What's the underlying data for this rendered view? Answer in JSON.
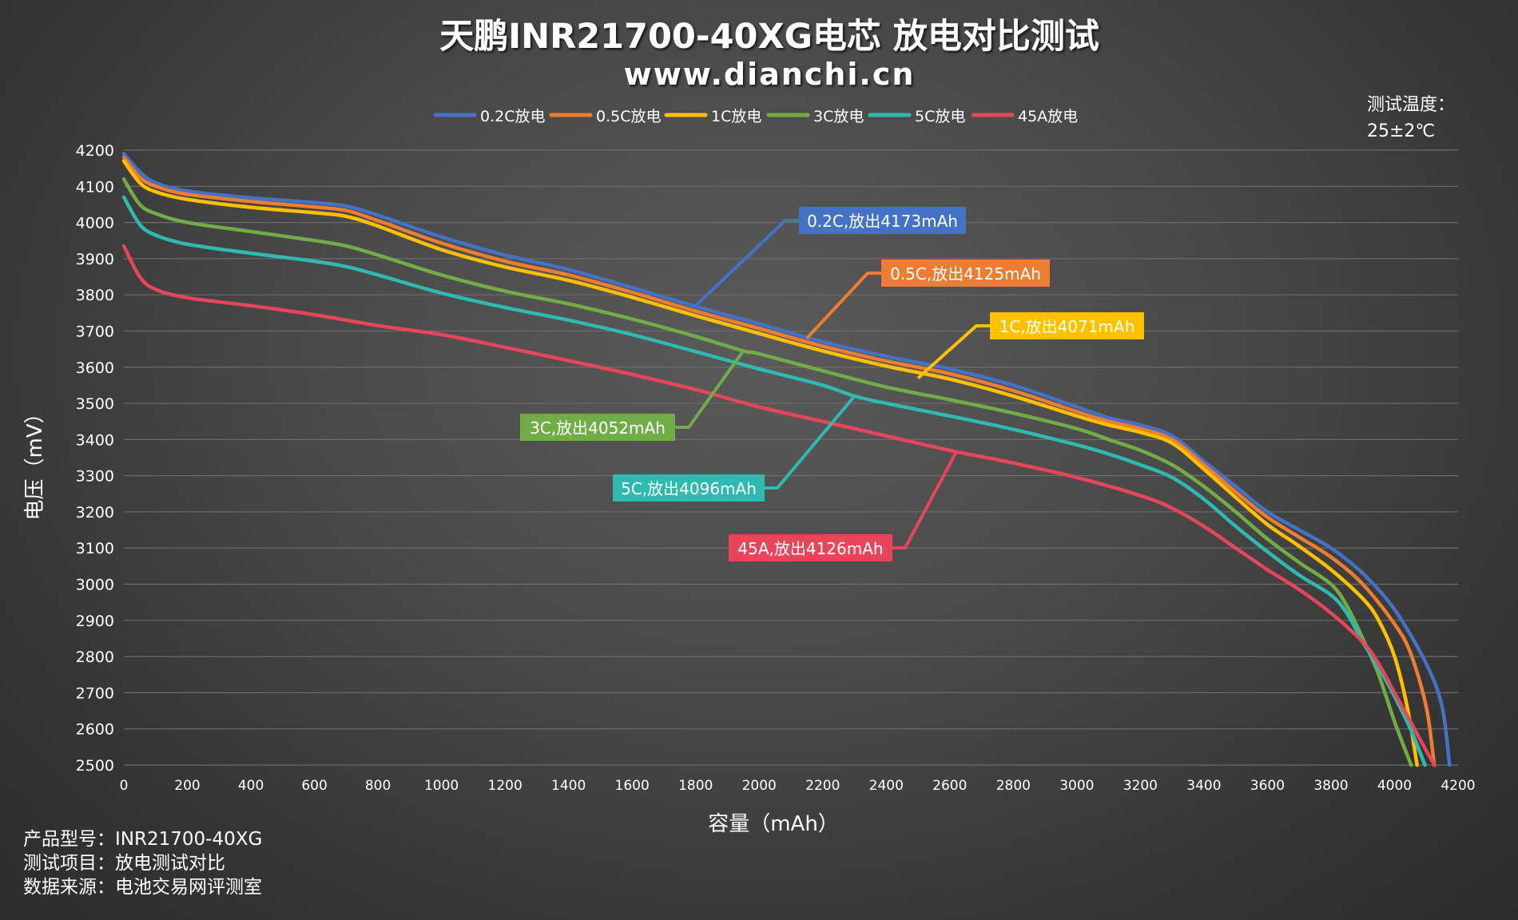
{
  "chart_data": {
    "type": "line",
    "title": "天鹏INR21700-40XG电芯 放电对比测试",
    "subtitle": "www.dianchi.cn",
    "xlabel": "容量（mAh）",
    "ylabel": "电压（mV）",
    "xlim": [
      0,
      4200
    ],
    "ylim": [
      2500,
      4200
    ],
    "xticks": [
      0,
      200,
      400,
      600,
      800,
      1000,
      1200,
      1400,
      1600,
      1800,
      2000,
      2200,
      2400,
      2600,
      2800,
      3000,
      3200,
      3400,
      3600,
      3800,
      4000,
      4200
    ],
    "yticks": [
      2500,
      2600,
      2700,
      2800,
      2900,
      3000,
      3100,
      3200,
      3300,
      3400,
      3500,
      3600,
      3700,
      3800,
      3900,
      4000,
      4100,
      4200
    ],
    "grid": true,
    "legend_position": "top-center",
    "temperature_note": [
      "测试温度：",
      "25±2℃"
    ],
    "series": [
      {
        "name": "0.2C放电",
        "color": "#4472C4",
        "points": [
          [
            0,
            4190
          ],
          [
            50,
            4140
          ],
          [
            100,
            4110
          ],
          [
            200,
            4087
          ],
          [
            400,
            4068
          ],
          [
            600,
            4055
          ],
          [
            700,
            4045
          ],
          [
            800,
            4020
          ],
          [
            1000,
            3960
          ],
          [
            1200,
            3910
          ],
          [
            1400,
            3870
          ],
          [
            1600,
            3820
          ],
          [
            1800,
            3768
          ],
          [
            2000,
            3720
          ],
          [
            2200,
            3670
          ],
          [
            2400,
            3630
          ],
          [
            2600,
            3595
          ],
          [
            2800,
            3550
          ],
          [
            3000,
            3490
          ],
          [
            3100,
            3460
          ],
          [
            3200,
            3440
          ],
          [
            3300,
            3410
          ],
          [
            3400,
            3340
          ],
          [
            3500,
            3270
          ],
          [
            3600,
            3200
          ],
          [
            3700,
            3150
          ],
          [
            3800,
            3100
          ],
          [
            3900,
            3030
          ],
          [
            4000,
            2930
          ],
          [
            4100,
            2780
          ],
          [
            4150,
            2660
          ],
          [
            4173,
            2500
          ]
        ],
        "callout": "0.2C,放出4173mAh",
        "anchor": [
          1800,
          3770
        ]
      },
      {
        "name": "0.5C放电",
        "color": "#ED7D31",
        "points": [
          [
            0,
            4180
          ],
          [
            50,
            4125
          ],
          [
            100,
            4100
          ],
          [
            200,
            4078
          ],
          [
            400,
            4058
          ],
          [
            600,
            4043
          ],
          [
            700,
            4033
          ],
          [
            800,
            4005
          ],
          [
            1000,
            3943
          ],
          [
            1200,
            3893
          ],
          [
            1400,
            3855
          ],
          [
            1600,
            3807
          ],
          [
            1800,
            3755
          ],
          [
            2000,
            3707
          ],
          [
            2200,
            3658
          ],
          [
            2400,
            3617
          ],
          [
            2600,
            3582
          ],
          [
            2800,
            3535
          ],
          [
            3000,
            3477
          ],
          [
            3100,
            3450
          ],
          [
            3200,
            3430
          ],
          [
            3300,
            3400
          ],
          [
            3400,
            3330
          ],
          [
            3500,
            3255
          ],
          [
            3600,
            3185
          ],
          [
            3700,
            3130
          ],
          [
            3800,
            3075
          ],
          [
            3900,
            3000
          ],
          [
            4000,
            2890
          ],
          [
            4050,
            2810
          ],
          [
            4100,
            2660
          ],
          [
            4125,
            2500
          ]
        ],
        "callout": "0.5C,放出4125mAh",
        "anchor": [
          2150,
          3680
        ]
      },
      {
        "name": "1C放电",
        "color": "#FFC000",
        "points": [
          [
            0,
            4170
          ],
          [
            50,
            4110
          ],
          [
            100,
            4085
          ],
          [
            200,
            4064
          ],
          [
            400,
            4042
          ],
          [
            600,
            4027
          ],
          [
            700,
            4017
          ],
          [
            800,
            3990
          ],
          [
            1000,
            3925
          ],
          [
            1200,
            3877
          ],
          [
            1400,
            3840
          ],
          [
            1600,
            3793
          ],
          [
            1800,
            3742
          ],
          [
            2000,
            3693
          ],
          [
            2200,
            3645
          ],
          [
            2400,
            3603
          ],
          [
            2600,
            3567
          ],
          [
            2800,
            3520
          ],
          [
            3000,
            3465
          ],
          [
            3100,
            3440
          ],
          [
            3200,
            3420
          ],
          [
            3300,
            3390
          ],
          [
            3400,
            3318
          ],
          [
            3500,
            3240
          ],
          [
            3600,
            3165
          ],
          [
            3700,
            3105
          ],
          [
            3800,
            3040
          ],
          [
            3900,
            2960
          ],
          [
            3950,
            2900
          ],
          [
            4000,
            2800
          ],
          [
            4040,
            2660
          ],
          [
            4071,
            2500
          ]
        ],
        "callout": "1C,放出4071mAh",
        "anchor": [
          2500,
          3570
        ]
      },
      {
        "name": "3C放电",
        "color": "#70AD47",
        "points": [
          [
            0,
            4120
          ],
          [
            50,
            4050
          ],
          [
            100,
            4025
          ],
          [
            200,
            4000
          ],
          [
            400,
            3975
          ],
          [
            600,
            3950
          ],
          [
            700,
            3935
          ],
          [
            800,
            3910
          ],
          [
            1000,
            3855
          ],
          [
            1200,
            3810
          ],
          [
            1400,
            3775
          ],
          [
            1600,
            3733
          ],
          [
            1800,
            3685
          ],
          [
            1950,
            3645
          ],
          [
            2000,
            3637
          ],
          [
            2200,
            3590
          ],
          [
            2400,
            3545
          ],
          [
            2600,
            3510
          ],
          [
            2800,
            3473
          ],
          [
            3000,
            3430
          ],
          [
            3100,
            3400
          ],
          [
            3200,
            3370
          ],
          [
            3300,
            3330
          ],
          [
            3400,
            3270
          ],
          [
            3500,
            3200
          ],
          [
            3600,
            3125
          ],
          [
            3700,
            3060
          ],
          [
            3800,
            3000
          ],
          [
            3850,
            2940
          ],
          [
            3900,
            2850
          ],
          [
            3950,
            2750
          ],
          [
            4000,
            2620
          ],
          [
            4052,
            2500
          ]
        ],
        "callout": "3C,放出4052mAh",
        "anchor": [
          1950,
          3645
        ]
      },
      {
        "name": "5C放电",
        "color": "#2EBAB0",
        "points": [
          [
            0,
            4070
          ],
          [
            50,
            3995
          ],
          [
            100,
            3965
          ],
          [
            200,
            3940
          ],
          [
            400,
            3915
          ],
          [
            600,
            3893
          ],
          [
            700,
            3878
          ],
          [
            800,
            3855
          ],
          [
            1000,
            3805
          ],
          [
            1200,
            3765
          ],
          [
            1400,
            3730
          ],
          [
            1600,
            3690
          ],
          [
            1800,
            3643
          ],
          [
            2000,
            3595
          ],
          [
            2200,
            3550
          ],
          [
            2300,
            3520
          ],
          [
            2400,
            3500
          ],
          [
            2600,
            3465
          ],
          [
            2800,
            3428
          ],
          [
            3000,
            3385
          ],
          [
            3100,
            3360
          ],
          [
            3200,
            3330
          ],
          [
            3300,
            3295
          ],
          [
            3400,
            3235
          ],
          [
            3500,
            3160
          ],
          [
            3600,
            3090
          ],
          [
            3700,
            3025
          ],
          [
            3800,
            2970
          ],
          [
            3850,
            2920
          ],
          [
            3900,
            2840
          ],
          [
            3950,
            2770
          ],
          [
            4000,
            2690
          ],
          [
            4050,
            2600
          ],
          [
            4096,
            2500
          ]
        ],
        "callout": "5C,放出4096mAh",
        "anchor": [
          2300,
          3520
        ]
      },
      {
        "name": "45A放电",
        "color": "#E6455A",
        "points": [
          [
            0,
            3935
          ],
          [
            50,
            3850
          ],
          [
            100,
            3815
          ],
          [
            200,
            3792
          ],
          [
            400,
            3770
          ],
          [
            600,
            3745
          ],
          [
            800,
            3715
          ],
          [
            1000,
            3690
          ],
          [
            1200,
            3655
          ],
          [
            1400,
            3618
          ],
          [
            1600,
            3580
          ],
          [
            1800,
            3538
          ],
          [
            2000,
            3490
          ],
          [
            2200,
            3450
          ],
          [
            2400,
            3410
          ],
          [
            2600,
            3370
          ],
          [
            2800,
            3335
          ],
          [
            3000,
            3295
          ],
          [
            3200,
            3245
          ],
          [
            3300,
            3210
          ],
          [
            3400,
            3160
          ],
          [
            3500,
            3100
          ],
          [
            3600,
            3040
          ],
          [
            3700,
            2985
          ],
          [
            3800,
            2920
          ],
          [
            3900,
            2840
          ],
          [
            3950,
            2780
          ],
          [
            4000,
            2700
          ],
          [
            4050,
            2620
          ],
          [
            4100,
            2540
          ],
          [
            4126,
            2500
          ]
        ],
        "callout": "45A,放出4126mAh",
        "anchor": [
          2620,
          3365
        ]
      }
    ]
  },
  "footer": {
    "model": "产品型号：INR21700-40XG",
    "test_item": "测试项目：放电测试对比",
    "source": "数据来源：电池交易网评测室"
  }
}
